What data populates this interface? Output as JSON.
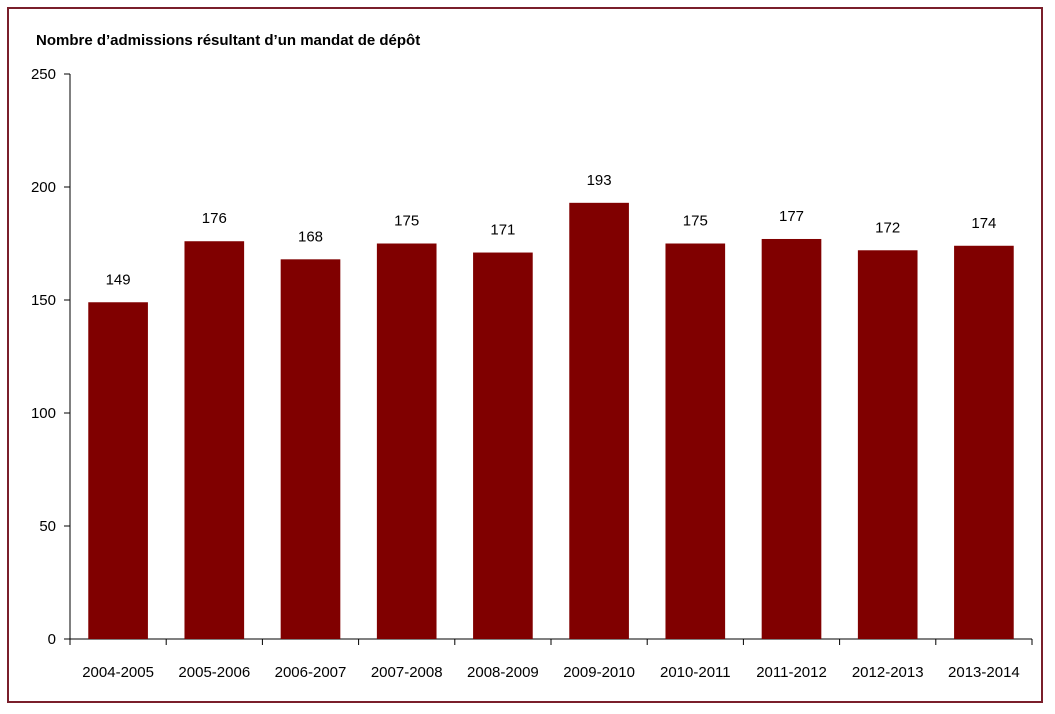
{
  "chart_data": {
    "type": "bar",
    "title": "Nombre d’admissions résultant d’un mandat de dépôt",
    "xlabel": "",
    "ylabel": "",
    "categories": [
      "2004-2005",
      "2005-2006",
      "2006-2007",
      "2007-2008",
      "2008-2009",
      "2009-2010",
      "2010-2011",
      "2011-2012",
      "2012-2013",
      "2013-2014"
    ],
    "values": [
      149,
      176,
      168,
      175,
      171,
      193,
      175,
      177,
      172,
      174
    ],
    "data_labels": [
      "149",
      "176",
      "168",
      "175",
      "171",
      "193",
      "175",
      "177",
      "172",
      "174"
    ],
    "ylim": [
      0,
      250
    ],
    "yticks": [
      0,
      50,
      100,
      150,
      200,
      250
    ],
    "ytick_labels": [
      "0",
      "50",
      "100",
      "150",
      "200",
      "250"
    ],
    "bar_color": "#800000",
    "grid": false,
    "legend": "none"
  }
}
